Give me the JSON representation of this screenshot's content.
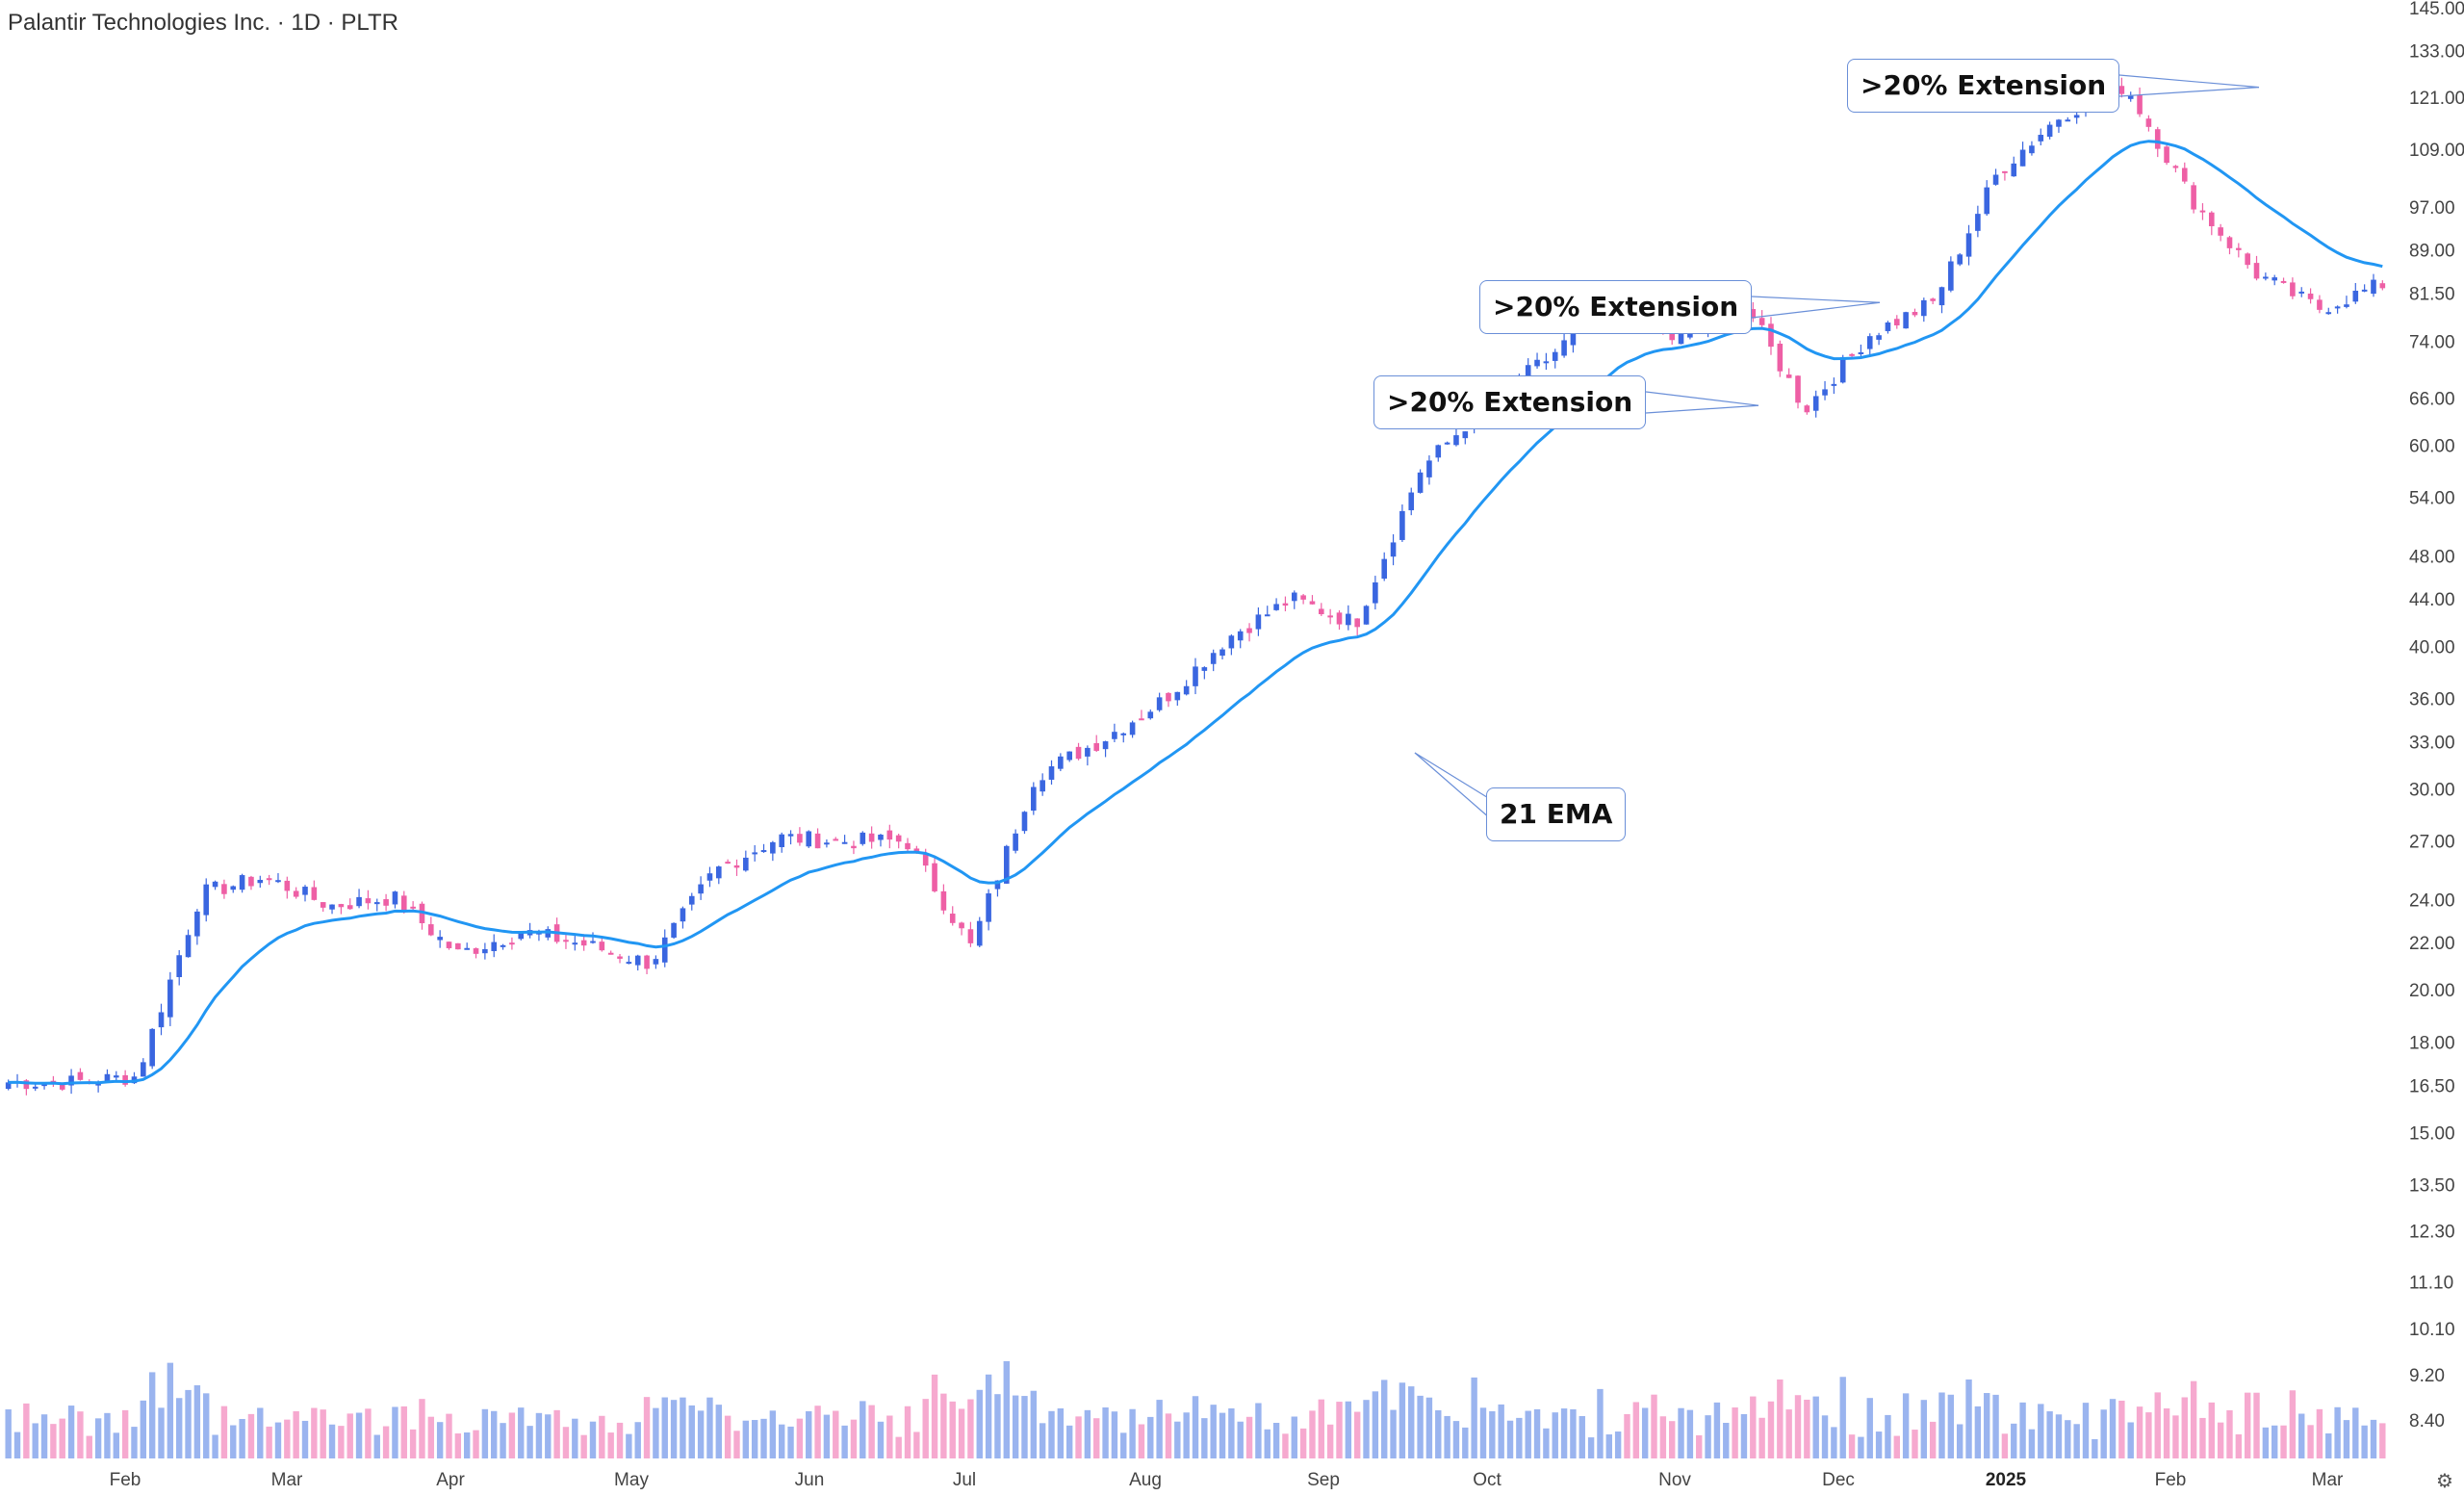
{
  "header": {
    "title": "Palantir Technologies Inc. · 1D · PLTR"
  },
  "colors": {
    "up": "#3a66e0",
    "down": "#ee5fa5",
    "ema": "#2196f3",
    "up_volume": "#9ab4ef",
    "down_volume": "#f6a9cf"
  },
  "chart_data": {
    "type": "candlestick",
    "title": "Palantir Technologies Inc. · 1D · PLTR",
    "y_scale": "log",
    "y_ticks": [
      "145.00",
      "133.00",
      "121.00",
      "109.00",
      "97.00",
      "89.00",
      "81.50",
      "74.00",
      "66.00",
      "60.00",
      "54.00",
      "48.00",
      "44.00",
      "40.00",
      "36.00",
      "33.00",
      "30.00",
      "27.00",
      "24.00",
      "22.00",
      "20.00",
      "18.00",
      "16.50",
      "15.00",
      "13.50",
      "12.30",
      "11.10",
      "10.10",
      "9.20",
      "8.40"
    ],
    "x_ticks": [
      "Feb",
      "Mar",
      "Apr",
      "May",
      "Jun",
      "Jul",
      "Aug",
      "Sep",
      "Oct",
      "Nov",
      "Dec",
      "2025",
      "Feb",
      "Mar"
    ],
    "indicator": {
      "name": "21 EMA",
      "values_approx": [
        16.7,
        16.5,
        18.5,
        21.8,
        23.5,
        22.9,
        21.8,
        21.3,
        24.1,
        26.8,
        26.9,
        30.1,
        33.5,
        36.8,
        42.3,
        51.0,
        60.1,
        69.9,
        74.1,
        72.2,
        79.0,
        102.4,
        91.0
      ]
    },
    "price_path_approx": [
      16.6,
      16.6,
      16.8,
      24.3,
      25.1,
      23.7,
      24.1,
      21.5,
      22.5,
      21.9,
      21.1,
      25.4,
      27.2,
      27.0,
      27.0,
      21.8,
      30.8,
      33.0,
      35.9,
      40.7,
      44.0,
      41.9,
      57.0,
      65.0,
      71.5,
      80.5,
      74.0,
      81.0,
      64.5,
      75.0,
      80.0,
      104.0,
      117.0,
      124.0,
      99.0,
      85.0,
      79.0,
      83.0
    ],
    "annotations": [
      {
        "text": ">20% Extension",
        "target_price": 123.5
      },
      {
        "text": ">20% Extension",
        "target_price": 80.0
      },
      {
        "text": ">20% Extension",
        "target_price": 65.0
      },
      {
        "text": "21 EMA"
      }
    ],
    "volume": {
      "shown": true,
      "relative": true
    }
  }
}
